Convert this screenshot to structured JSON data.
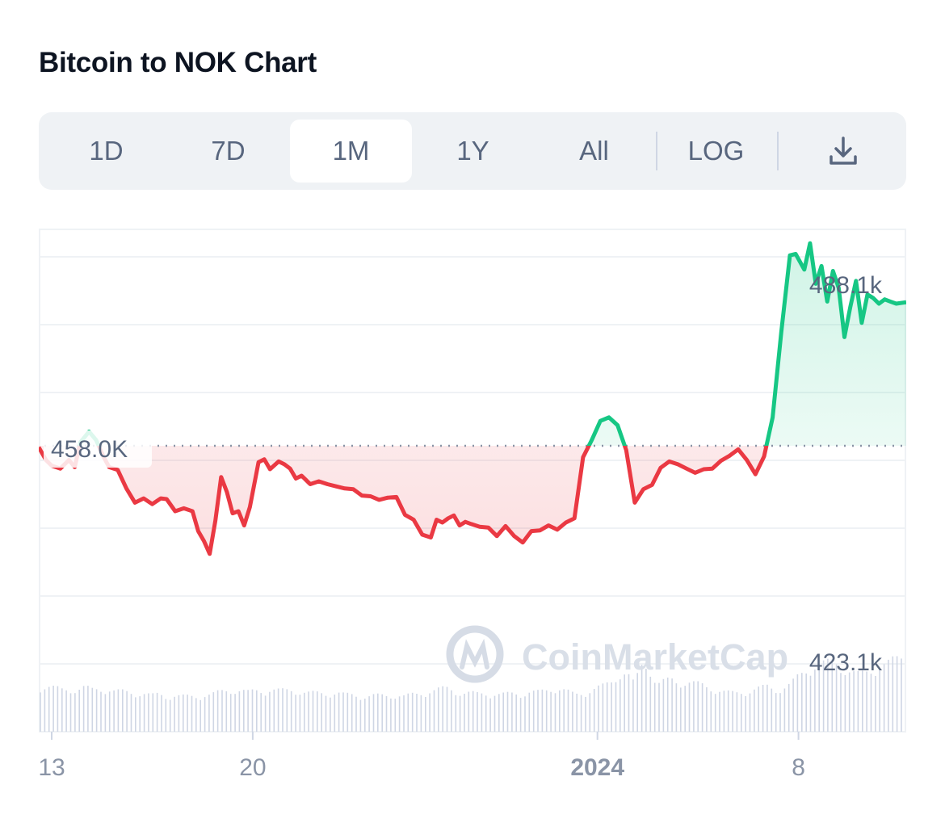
{
  "title": "Bitcoin to NOK Chart",
  "toolbar": {
    "tabs": [
      {
        "label": "1D"
      },
      {
        "label": "7D"
      },
      {
        "label": "1M",
        "active": true
      },
      {
        "label": "1Y"
      },
      {
        "label": "All"
      }
    ],
    "log_label": "LOG",
    "download_icon": "download-icon"
  },
  "watermark": "CoinMarketCap",
  "colors": {
    "up": "#16c784",
    "down": "#ea3943",
    "text_muted": "#58667e",
    "toolbar_bg": "#eff2f5",
    "grid": "#eff2f5",
    "volume": "#cfd6e4"
  },
  "chart_data": {
    "type": "line",
    "title": "Bitcoin to NOK Chart",
    "reference_value": 458000,
    "reference_label": "458.0K",
    "max_label": "488.1k",
    "min_label": "423.1k",
    "x_ticks": [
      {
        "label": "13",
        "day": 13,
        "bold": false
      },
      {
        "label": "20",
        "day": 20,
        "bold": false
      },
      {
        "label": "2024",
        "day": 32,
        "bold": true
      },
      {
        "label": "8",
        "day": 39,
        "bold": false
      }
    ],
    "x_range_days": [
      12.55,
      42.75
    ],
    "series": [
      {
        "x_days": [
          12.55,
          12.8,
          13.0,
          13.3,
          13.6,
          13.8,
          14.0,
          14.3,
          14.55,
          14.8,
          15.0,
          15.3,
          15.6,
          15.9,
          16.2,
          16.5,
          16.8,
          17.0,
          17.3,
          17.6,
          17.9,
          18.1,
          18.3,
          18.5,
          18.7,
          18.9,
          19.1,
          19.3,
          19.5,
          19.7,
          19.9,
          20.2,
          20.4,
          20.6,
          20.9,
          21.1,
          21.3,
          21.5,
          21.7,
          22.0,
          22.3,
          22.6,
          22.9,
          23.2,
          23.5,
          23.8,
          24.1,
          24.4,
          24.7,
          25.0,
          25.3,
          25.6,
          25.9,
          26.2,
          26.4,
          26.6,
          26.8,
          27.0,
          27.2,
          27.4,
          27.6,
          27.9,
          28.2,
          28.5,
          28.8,
          29.1,
          29.4,
          29.7,
          30.0,
          30.3,
          30.6,
          30.9,
          31.2,
          31.5,
          31.8,
          32.1,
          32.4,
          32.7,
          33.0,
          33.3,
          33.6,
          33.9,
          34.2,
          34.5,
          34.8,
          35.1,
          35.4,
          35.7,
          36.0,
          36.3,
          36.6,
          36.9,
          37.2,
          37.5,
          37.8,
          38.1,
          38.4,
          38.7,
          38.9,
          39.2,
          39.4,
          39.6,
          39.8,
          40.0,
          40.2,
          40.4,
          40.6,
          40.8,
          41.0,
          41.2,
          41.4,
          41.6,
          41.8,
          42.0,
          42.2,
          42.4,
          42.75
        ],
        "values": [
          457800,
          456000,
          455200,
          454800,
          456000,
          455000,
          458500,
          460000,
          458800,
          456500,
          455000,
          454600,
          452000,
          450000,
          450600,
          449800,
          450600,
          450500,
          448800,
          449200,
          448800,
          446000,
          444600,
          442800,
          447500,
          453600,
          451500,
          448500,
          448800,
          446800,
          449400,
          455700,
          456100,
          454700,
          455800,
          455400,
          454800,
          453400,
          453800,
          452600,
          453000,
          452600,
          452300,
          452000,
          451900,
          451000,
          450900,
          450400,
          450700,
          450800,
          448300,
          447600,
          445500,
          445100,
          447600,
          447200,
          447800,
          448200,
          446800,
          447300,
          447000,
          446600,
          446500,
          445300,
          446700,
          445300,
          444400,
          446000,
          446100,
          446800,
          446200,
          447200,
          447800,
          456400,
          458800,
          461500,
          462000,
          460900,
          457400,
          450000,
          451900,
          452500,
          454900,
          455800,
          455400,
          454800,
          454200,
          454700,
          454800,
          455900,
          456600,
          457500,
          456000,
          454000,
          456500,
          462000,
          474000,
          484800,
          485000,
          482800,
          486500,
          480800,
          483300,
          478300,
          482600,
          480200,
          473300,
          477500,
          481200,
          475300,
          479300,
          478800,
          478000,
          478600,
          478300,
          478000,
          478200
        ],
        "volume_series": [
          54,
          53,
          52,
          50,
          51,
          50,
          53,
          50,
          51,
          51,
          48,
          48,
          47,
          46,
          45,
          43,
          45,
          42,
          43,
          42,
          42,
          42,
          44,
          44,
          47,
          49,
          50,
          49,
          47,
          49,
          49,
          50,
          49,
          49,
          50,
          48,
          46,
          46,
          46,
          46,
          46,
          44,
          44,
          43,
          42,
          43,
          43,
          43,
          44,
          42,
          44,
          45,
          48,
          49,
          51,
          52,
          48,
          46,
          46,
          45,
          46,
          45,
          44,
          45,
          46,
          45,
          47,
          47,
          49,
          52,
          51,
          48,
          44,
          46,
          49,
          52,
          55,
          60,
          69,
          70,
          57,
          79,
          80,
          56,
          60,
          62,
          58,
          60,
          58,
          56,
          52,
          51,
          48,
          46,
          46,
          48,
          50,
          52,
          54,
          50,
          52,
          56,
          65,
          72,
          78,
          80,
          82,
          84,
          76,
          72,
          68,
          70,
          74,
          78,
          80,
          86,
          90
        ]
      }
    ]
  }
}
